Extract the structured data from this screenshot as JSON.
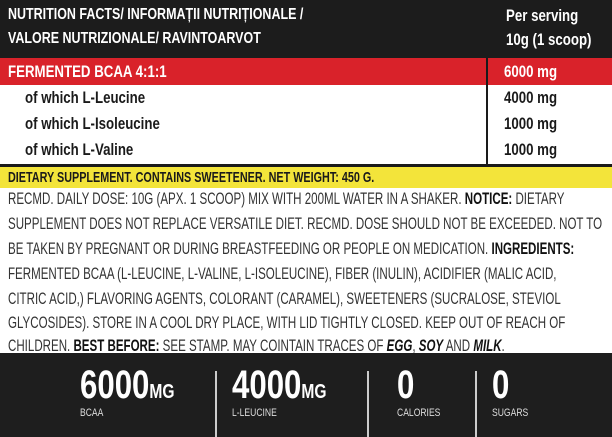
{
  "header": {
    "title_line1": "NUTRITION FACTS/ INFORMAȚII NUTRIȚIONALE /",
    "title_line2": "VALORE NUTRIZIONALE/ RAVINTOARVOT",
    "serving_line1": "Per serving",
    "serving_line2": "10g (1 scoop)"
  },
  "table": {
    "main": {
      "label": "FERMENTED BCAA 4:1:1",
      "value": "6000 mg"
    },
    "rows": [
      {
        "label": "of which L-Leucine",
        "value": "4000 mg"
      },
      {
        "label": "of which L-Isoleucine",
        "value": "1000 mg"
      },
      {
        "label": "of which L-Valine",
        "value": "1000 mg"
      }
    ]
  },
  "banner": "DIETARY SUPPLEMENT. CONTAINS SWEETENER. NET WEIGHT: 450 G.",
  "paragraph": {
    "l1a": "RECMD. DAILY DOSE: 10G (APX. 1 SCOOP) MIX WITH 200ML WATER IN A SHAKER. ",
    "l1b": "NOTICE:",
    "l1c": " DIETARY",
    "l2": "SUPPLEMENT DOES NOT REPLACE VERSATILE DIET. RECMD. DOSE SHOULD NOT BE EXCEEDED. NOT TO",
    "l3a": "BE TAKEN BY PREGNANT OR DURING BREASTFEEDING OR PEOPLE ON MEDICATION. ",
    "l3b": "INGREDIENTS:",
    "l4": "FERMENTED BCAA (L-LEUCINE, L-VALINE, L-ISOLEUCINE), FIBER (INULIN), ACIDIFIER (MALIC ACID,",
    "l5": "CITRIC ACID,) FLAVORING AGENTS, COLORANT (CARAMEL), SWEETENERS (SUCRALOSE, STEVIOL",
    "l6": "GLYCOSIDES). STORE IN A COOL DRY PLACE, WITH LID TIGHTLY CLOSED. KEEP OUT OF REACH OF",
    "l7a": "CHILDREN. ",
    "l7b": "BEST BEFORE:",
    "l7c": " SEE STAMP. MAY COINTAIN TRACES OF ",
    "l7d": "EGG",
    "l7e": ", ",
    "l7f": "SOY",
    "l7g": " AND ",
    "l7h": "MILK",
    "l7i": "."
  },
  "stats": [
    {
      "value": "6000",
      "unit": "MG",
      "label": "BCAA"
    },
    {
      "value": "4000",
      "unit": "MG",
      "label": "L-LEUCINE"
    },
    {
      "value": "0",
      "unit": "",
      "label": "CALORIES"
    },
    {
      "value": "0",
      "unit": "",
      "label": "SUGARS"
    }
  ],
  "colors": {
    "header_bg": "#1c1c1c",
    "accent_red": "#d9222a",
    "banner_yellow": "#f3e43a"
  }
}
